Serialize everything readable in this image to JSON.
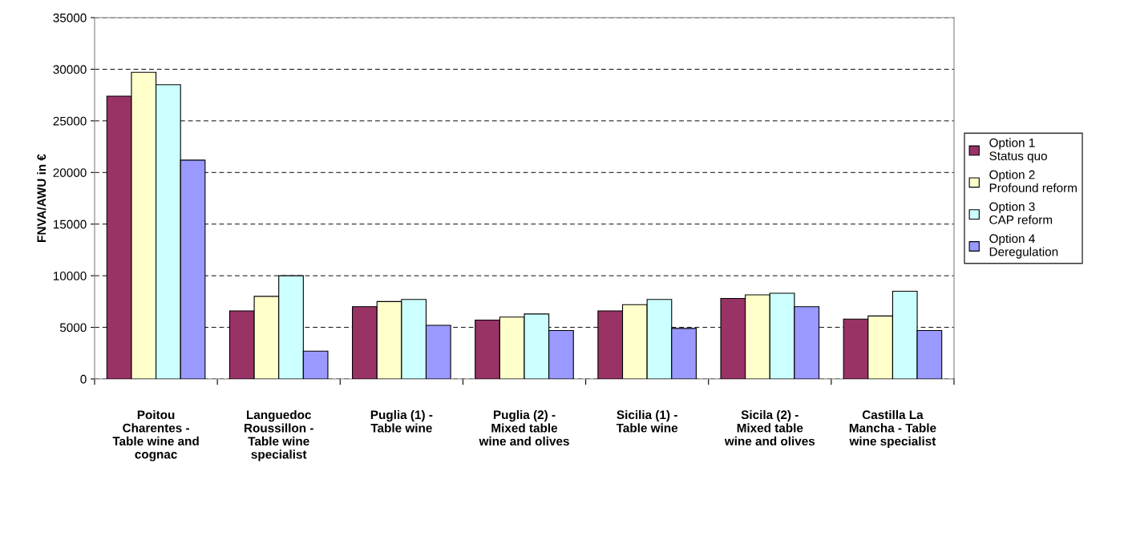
{
  "chart_data": {
    "type": "bar",
    "ylabel": "FNVA/AWU in €",
    "categories": [
      "Poitou\nCharentes -\nTable wine and\ncognac",
      "Languedoc\nRoussillon -\nTable wine\nspecialist",
      "Puglia (1) -\nTable wine",
      "Puglia (2) -\nMixed table\nwine and olives",
      "Sicilia (1) -\nTable wine",
      "Sicila (2) -\nMixed table\nwine and olives",
      "Castilla La\nMancha - Table\nwine specialist"
    ],
    "series": [
      {
        "name": "Option 1\nStatus quo",
        "color": "#993366",
        "values": [
          27400,
          6600,
          7000,
          5700,
          6600,
          7800,
          5800
        ]
      },
      {
        "name": "Option 2\nProfound reform",
        "color": "#ffffcc",
        "values": [
          29700,
          8000,
          7500,
          6000,
          7200,
          8150,
          6100
        ]
      },
      {
        "name": "Option 3\nCAP reform",
        "color": "#ccffff",
        "values": [
          28500,
          10000,
          7700,
          6300,
          7700,
          8300,
          8500
        ]
      },
      {
        "name": "Option 4\nDeregulation",
        "color": "#9999ff",
        "values": [
          21200,
          2700,
          5200,
          4700,
          4900,
          7000,
          4700
        ]
      }
    ],
    "ylim": [
      0,
      35000
    ],
    "yticks": [
      0,
      5000,
      10000,
      15000,
      20000,
      25000,
      30000,
      35000
    ],
    "grid": "y",
    "legend": "right"
  }
}
